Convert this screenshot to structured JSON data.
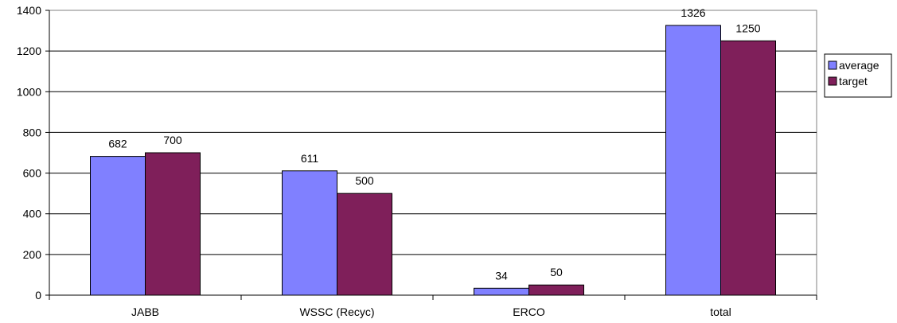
{
  "chart_data": {
    "type": "bar",
    "title": "",
    "xlabel": "",
    "ylabel": "",
    "categories": [
      "JABB",
      "WSSC (Recyc)",
      "ERCO",
      "total"
    ],
    "series": [
      {
        "name": "average",
        "values": [
          682,
          611,
          34,
          1326
        ],
        "color": "#8080ff"
      },
      {
        "name": "target",
        "values": [
          700,
          500,
          50,
          1250
        ],
        "color": "#7f1f5a"
      }
    ],
    "ylim": [
      0,
      1400
    ],
    "yticks": [
      0,
      200,
      400,
      600,
      800,
      1000,
      1200,
      1400
    ],
    "grid": true,
    "legend_position": "right"
  }
}
